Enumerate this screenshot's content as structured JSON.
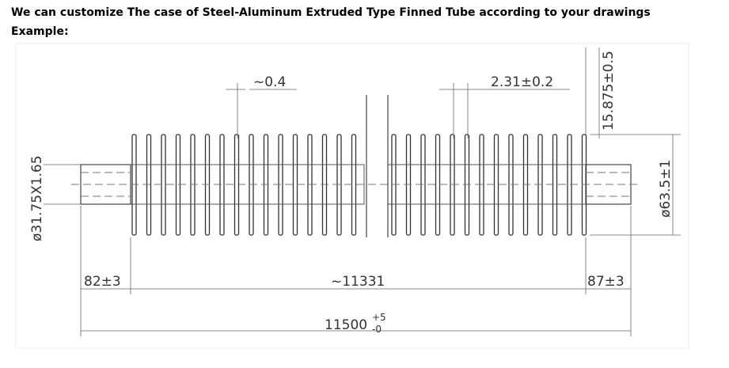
{
  "heading": "We can customize The case of Steel-Aluminum Extruded Type Finned Tube according to your drawings",
  "subheading": "Example:",
  "dimensions": {
    "fin_thickness": "~0.4",
    "fin_pitch": "2.31±0.2",
    "fin_height": "15.875±0.5",
    "fin_diameter": "ø63.5±1",
    "tube_size": "ø31.75X1.65",
    "left_end": "82±3",
    "finned_length": "~11331",
    "right_end": "87±3",
    "total_length": "11500",
    "total_upper": "+5",
    "total_lower": "-0"
  }
}
